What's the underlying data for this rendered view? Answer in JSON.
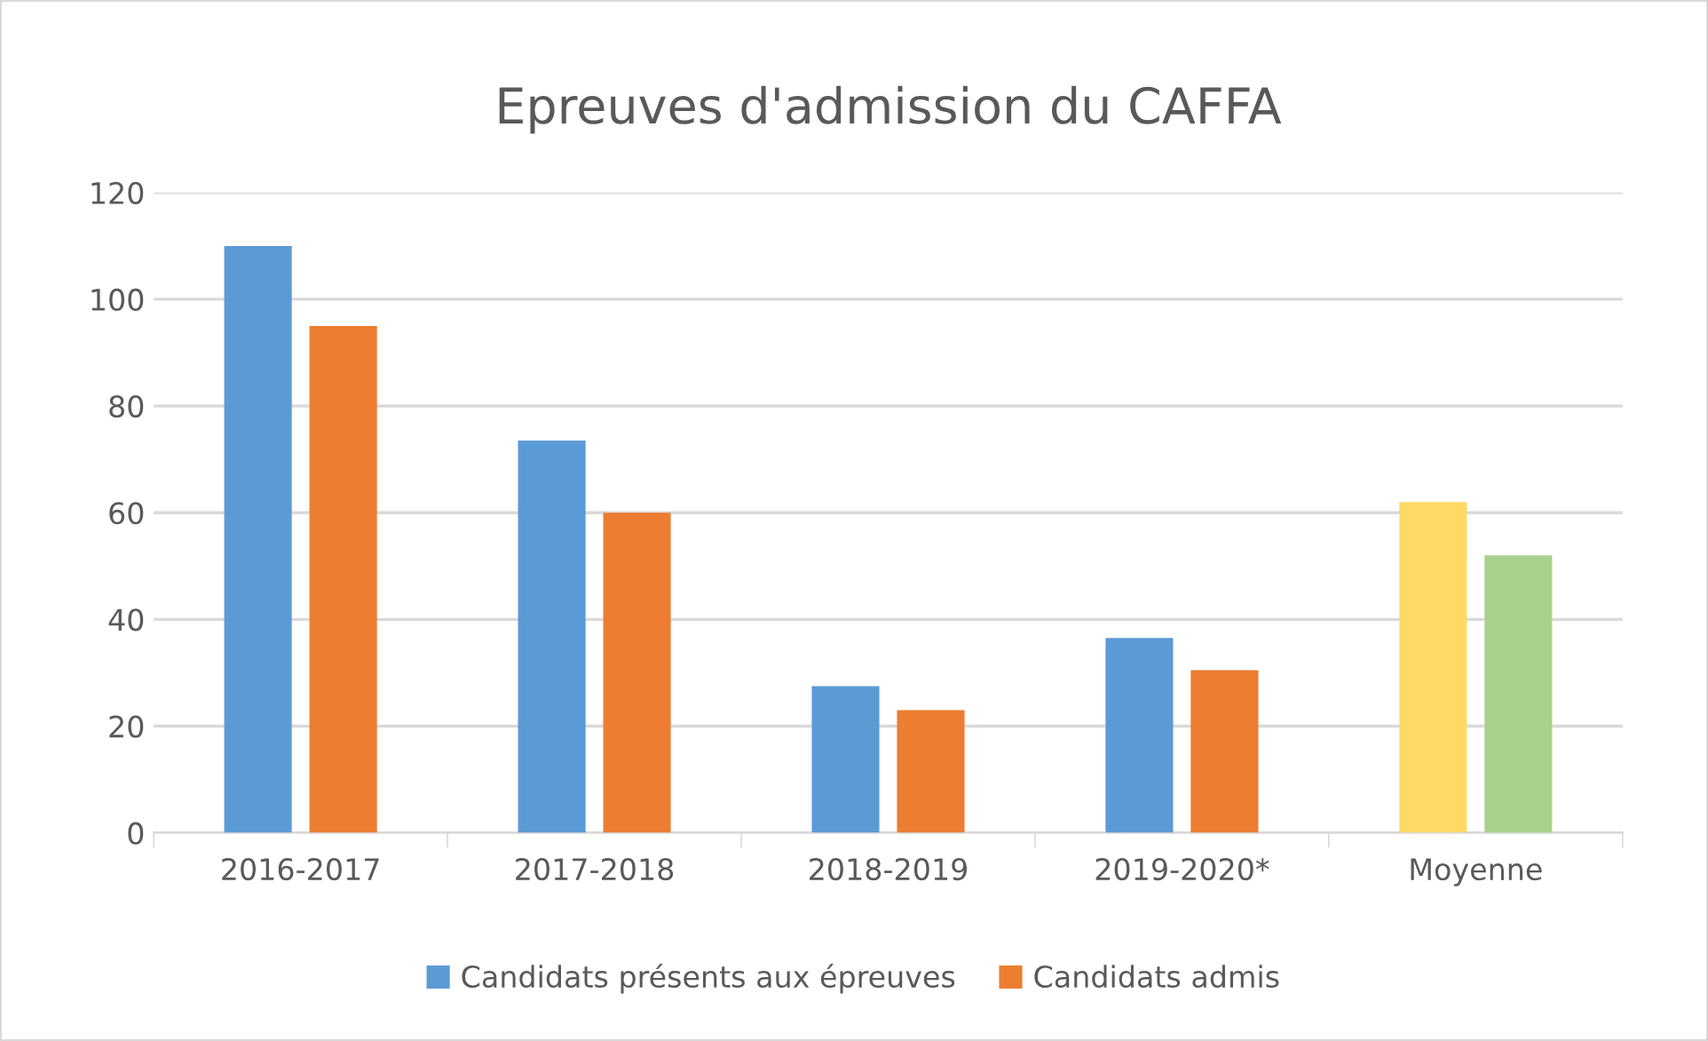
{
  "chart_data": {
    "type": "bar",
    "title": "Epreuves d'admission du CAFFA",
    "categories": [
      "2016-2017",
      "2017-2018",
      "2018-2019",
      "2019-2020*",
      "Moyenne"
    ],
    "series": [
      {
        "name": "Candidats présents aux épreuves",
        "color": "#5b9bd5",
        "colors": [
          "#5b9bd5",
          "#5b9bd5",
          "#5b9bd5",
          "#5b9bd5",
          "#ffd966"
        ],
        "values": [
          110,
          73.5,
          27.5,
          36.5,
          62
        ]
      },
      {
        "name": "Candidats admis",
        "color": "#ed7d31",
        "colors": [
          "#ed7d31",
          "#ed7d31",
          "#ed7d31",
          "#ed7d31",
          "#a9d18e"
        ],
        "values": [
          95,
          60,
          23,
          30.5,
          52
        ]
      }
    ],
    "ylim": [
      0,
      120
    ],
    "yticks": [
      0,
      20,
      40,
      60,
      80,
      100,
      120
    ],
    "grid": "y",
    "legend": "bottom"
  }
}
